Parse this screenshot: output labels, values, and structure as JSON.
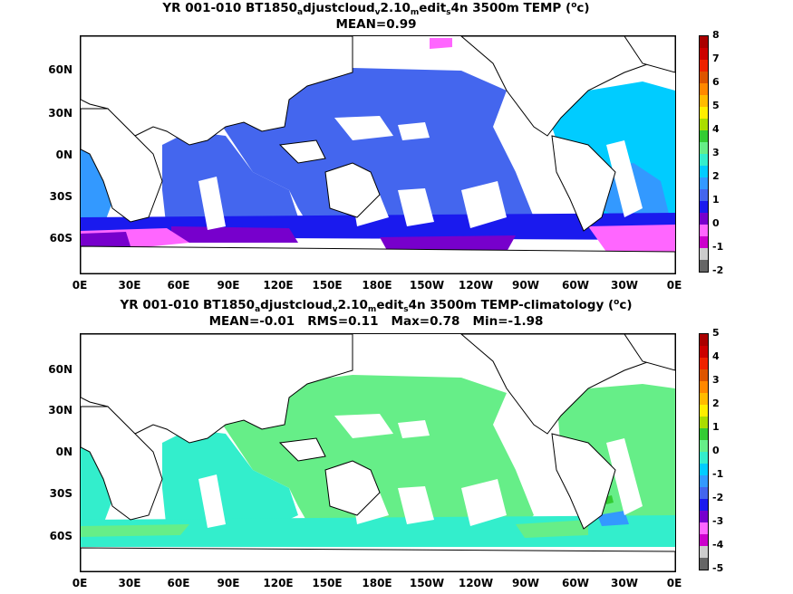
{
  "map1": {
    "title_pre": "YR 001-010 BT1850",
    "title_s1": "a",
    "title_mid1": "djustcloud",
    "title_s2": "v",
    "title_mid2": "2.10",
    "title_s3": "m",
    "title_mid3": "edit",
    "title_s4": "s",
    "title_post": "4n 3500m TEMP (",
    "title_sup": "o",
    "title_end": "c)",
    "stats": "MEAN=0.99",
    "colorbar_labels": [
      "8",
      "7",
      "6",
      "5",
      "4",
      "3",
      "2",
      "1",
      "0",
      "-1",
      "-2"
    ]
  },
  "map2": {
    "title_pre": "YR 001-010 BT1850",
    "title_s1": "a",
    "title_mid1": "djustcloud",
    "title_s2": "v",
    "title_mid2": "2.10",
    "title_s3": "m",
    "title_mid3": "edit",
    "title_s4": "s",
    "title_post": "4n 3500m TEMP-climatology (",
    "title_sup": "o",
    "title_end": "c)",
    "stats": "MEAN=-0.01   RMS=0.11   Max=0.78   Min=-1.98",
    "colorbar_labels": [
      "5",
      "4",
      "3",
      "2",
      "1",
      "0",
      "-1",
      "-2",
      "-3",
      "-4",
      "-5"
    ]
  },
  "axes": {
    "lat_labels": [
      "60N",
      "30N",
      "0N",
      "30S",
      "60S"
    ],
    "lon_labels": [
      "0E",
      "30E",
      "60E",
      "90E",
      "120E",
      "150E",
      "180E",
      "150W",
      "120W",
      "90W",
      "60W",
      "30W",
      "0E"
    ]
  },
  "colors": {
    "scale": [
      "#666666",
      "#cccccc",
      "#cc00cc",
      "#ff66ff",
      "#7700cc",
      "#1a1aee",
      "#4466ee",
      "#3399ff",
      "#00ccff",
      "#33eecc",
      "#66ee88",
      "#33cc33",
      "#aadd00",
      "#ffee00",
      "#ffbb00",
      "#ff8800",
      "#dd5500",
      "#ee2200",
      "#cc0000",
      "#aa0000"
    ],
    "land": "#ffffff",
    "coast": "#000000"
  }
}
